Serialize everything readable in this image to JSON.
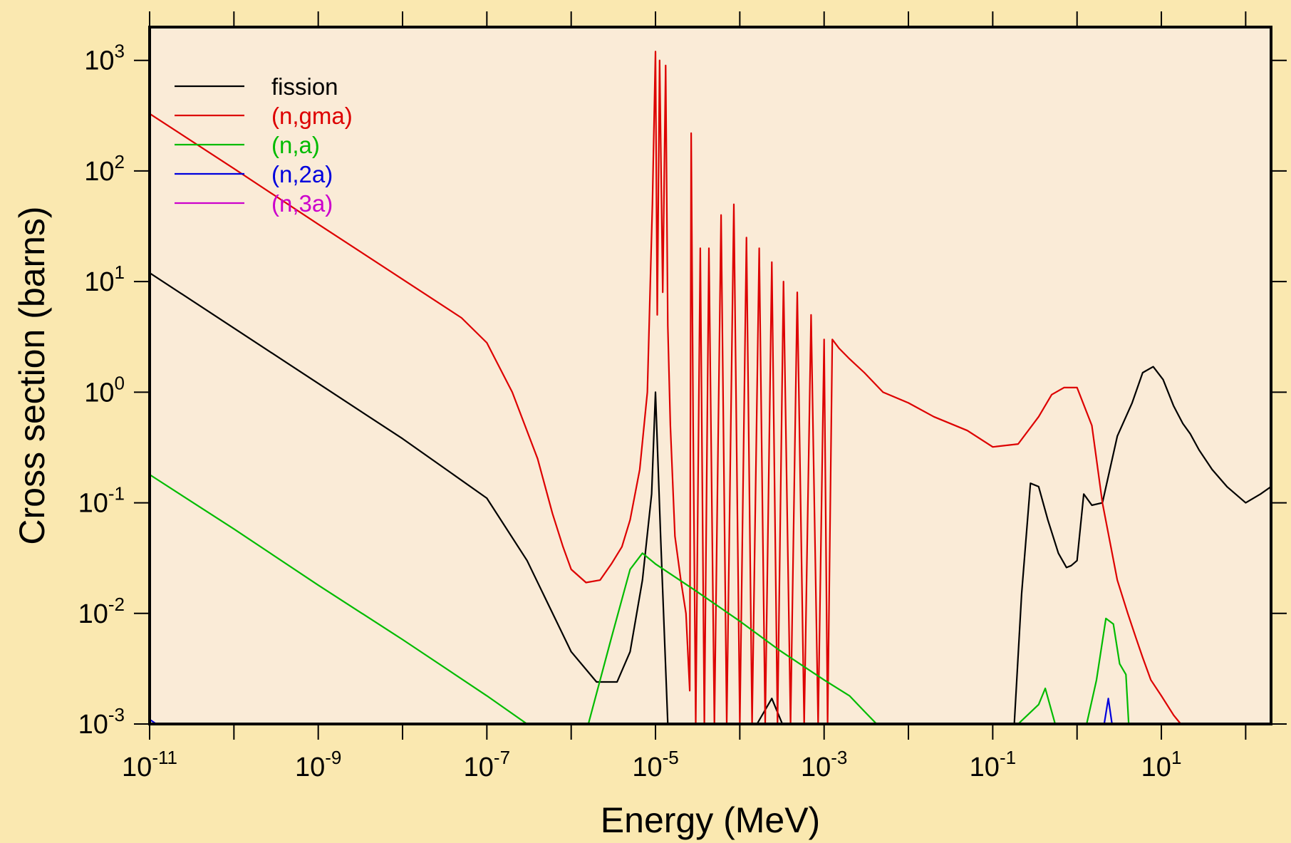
{
  "chart_data": {
    "type": "line",
    "title": "",
    "xlabel": "Energy (MeV)",
    "ylabel": "Cross section (barns)",
    "x_scale": "log",
    "y_scale": "log",
    "xlim": [
      1e-11,
      200
    ],
    "ylim": [
      0.001,
      2000
    ],
    "grid": false,
    "legend_position": "top-left",
    "plot_background": "#FAEBD7",
    "page_background": "#FAE8B0",
    "x_ticks": [
      {
        "label_base": "10",
        "label_exp": "-11",
        "value": 1e-11
      },
      {
        "label_base": "10",
        "label_exp": "-9",
        "value": 1e-09
      },
      {
        "label_base": "10",
        "label_exp": "-7",
        "value": 1e-07
      },
      {
        "label_base": "10",
        "label_exp": "-5",
        "value": 1e-05
      },
      {
        "label_base": "10",
        "label_exp": "-3",
        "value": 0.001
      },
      {
        "label_base": "10",
        "label_exp": "-1",
        "value": 0.1
      },
      {
        "label_base": "10",
        "label_exp": "1",
        "value": 10
      }
    ],
    "y_ticks": [
      {
        "label_base": "10",
        "label_exp": "-3",
        "value": 0.001
      },
      {
        "label_base": "10",
        "label_exp": "-2",
        "value": 0.01
      },
      {
        "label_base": "10",
        "label_exp": "-1",
        "value": 0.1
      },
      {
        "label_base": "10",
        "label_exp": "0",
        "value": 1
      },
      {
        "label_base": "10",
        "label_exp": "1",
        "value": 10
      },
      {
        "label_base": "10",
        "label_exp": "2",
        "value": 100
      },
      {
        "label_base": "10",
        "label_exp": "3",
        "value": 1000
      }
    ],
    "series": [
      {
        "name": "fission",
        "color": "#000000",
        "x": [
          1e-11,
          1e-10,
          1e-09,
          1e-08,
          1e-07,
          3e-07,
          1e-06,
          2e-06,
          3.5e-06,
          5e-06,
          7e-06,
          9e-06,
          1e-05,
          1.15e-05,
          1.4e-05,
          2e-05,
          2.6e-05,
          2.9e-05,
          0.00016,
          0.00024,
          0.00032,
          0.0012,
          0.0015,
          0.18,
          0.22,
          0.28,
          0.35,
          0.45,
          0.6,
          0.75,
          0.85,
          1.0,
          1.2,
          1.5,
          2.0,
          3.0,
          4.5,
          6.0,
          8.0,
          10.5,
          14.0,
          18.0,
          22.0,
          28.0,
          40.0,
          60.0,
          100.0,
          150.0,
          200.0
        ],
        "y": [
          12.0,
          3.8,
          1.2,
          0.38,
          0.11,
          0.03,
          0.0045,
          0.0024,
          0.0024,
          0.0045,
          0.02,
          0.12,
          1.0,
          0.05,
          0.001,
          0.001,
          0.001,
          0.001,
          0.001,
          0.0017,
          0.001,
          0.001,
          0.001,
          0.001,
          0.015,
          0.15,
          0.14,
          0.07,
          0.035,
          0.026,
          0.027,
          0.03,
          0.12,
          0.095,
          0.1,
          0.4,
          0.8,
          1.5,
          1.7,
          1.3,
          0.75,
          0.52,
          0.42,
          0.3,
          0.2,
          0.14,
          0.1,
          0.12,
          0.14
        ]
      },
      {
        "name": "(n,gma)",
        "color": "#DD0000",
        "x": [
          1e-11,
          1e-10,
          1e-09,
          1e-08,
          5e-08,
          1e-07,
          2e-07,
          4e-07,
          6e-07,
          8e-07,
          1e-06,
          1.5e-06,
          2.2e-06,
          3e-06,
          4e-06,
          5e-06,
          6.5e-06,
          8e-06,
          9.2e-06,
          1e-05,
          1.05e-05,
          1.12e-05,
          1.22e-05,
          1.32e-05,
          1.4e-05,
          1.5e-05,
          1.7e-05,
          2e-05,
          2.3e-05,
          2.55e-05,
          2.65e-05,
          2.8e-05,
          3e-05,
          3.4e-05,
          3.8e-05,
          4.3e-05,
          5e-05,
          6e-05,
          7e-05,
          8.5e-05,
          0.0001,
          0.00012,
          0.00014,
          0.00017,
          0.0002,
          0.00024,
          0.00028,
          0.00033,
          0.0004,
          0.00048,
          0.00058,
          0.0007,
          0.00085,
          0.001,
          0.0011,
          0.00125,
          0.0015,
          0.002,
          0.003,
          0.005,
          0.01,
          0.02,
          0.05,
          0.1,
          0.2,
          0.35,
          0.5,
          0.7,
          1.0,
          1.5,
          2.0,
          3.0,
          4.0,
          5.0,
          6.0,
          7.5,
          10.0,
          14.0,
          17.0,
          20.0
        ],
        "y": [
          330.0,
          105.0,
          33.0,
          10.5,
          4.7,
          2.8,
          1.0,
          0.25,
          0.08,
          0.04,
          0.025,
          0.019,
          0.02,
          0.028,
          0.04,
          0.07,
          0.2,
          1.0,
          50.0,
          1200.0,
          5.0,
          1000.0,
          8.0,
          900.0,
          4.0,
          0.5,
          0.05,
          0.02,
          0.01,
          0.002,
          220.0,
          0.5,
          0.001,
          20.0,
          0.001,
          20.0,
          0.001,
          40.0,
          0.001,
          50.0,
          0.001,
          25.0,
          0.001,
          20.0,
          0.001,
          15.0,
          0.001,
          10.0,
          0.001,
          8.0,
          0.001,
          5.0,
          0.001,
          3.0,
          0.001,
          3.0,
          2.5,
          2.0,
          1.5,
          1.0,
          0.8,
          0.6,
          0.45,
          0.32,
          0.34,
          0.6,
          0.95,
          1.1,
          1.1,
          0.5,
          0.1,
          0.02,
          0.01,
          0.006,
          0.004,
          0.0025,
          0.0018,
          0.0012,
          0.001,
          0.001
        ]
      },
      {
        "name": "(n,a)",
        "color": "#00BB00",
        "x": [
          1e-11,
          1e-10,
          1e-09,
          1e-08,
          1e-07,
          3e-07,
          1.6e-06,
          3e-06,
          5e-06,
          7e-06,
          1e-05,
          3e-05,
          0.0001,
          0.0003,
          0.001,
          0.002,
          0.003,
          0.0042,
          0.2,
          0.35,
          0.42,
          0.55,
          1.3,
          1.7,
          2.2,
          2.7,
          3.2,
          3.8,
          4.1,
          4.5
        ],
        "y": [
          0.18,
          0.058,
          0.018,
          0.0058,
          0.0018,
          0.001,
          0.001,
          0.006,
          0.025,
          0.035,
          0.028,
          0.016,
          0.0085,
          0.0046,
          0.0025,
          0.0018,
          0.0013,
          0.001,
          0.001,
          0.0015,
          0.0021,
          0.001,
          0.001,
          0.0025,
          0.009,
          0.008,
          0.0035,
          0.0028,
          0.001,
          0.001
        ]
      },
      {
        "name": "(n,2a)",
        "color": "#0000DD",
        "x": [
          1e-11,
          1.2e-11,
          1.5e-11,
          200.0,
          1.8,
          2.1,
          2.35,
          2.6,
          3.0
        ],
        "y": [
          0.0011,
          0.001,
          0.001,
          0.001,
          0.001,
          0.001,
          0.0017,
          0.001,
          0.001
        ]
      },
      {
        "name": "(n,3a)",
        "color": "#CC00CC",
        "x": [
          1e-11,
          200.0
        ],
        "y": [
          0.001,
          0.001
        ]
      }
    ]
  }
}
